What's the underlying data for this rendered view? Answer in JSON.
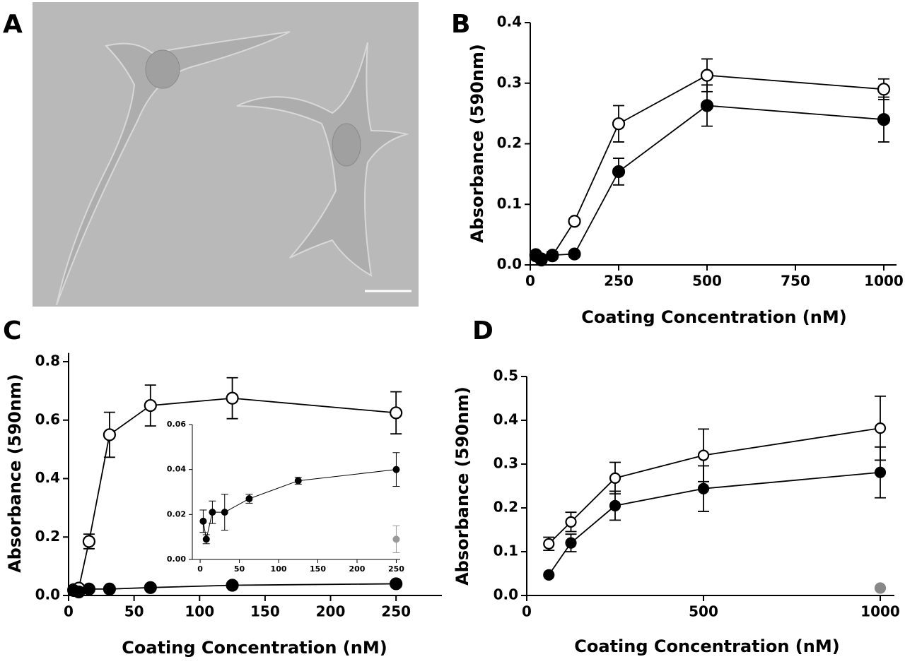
{
  "image_panel": {
    "label": "A"
  },
  "chart_data": [
    {
      "type": "line",
      "panel_label": "B",
      "ylabel": "Absorbance (590nm)",
      "xlabel": "Coating Concentration (nM)",
      "xlim": [
        0,
        1036
      ],
      "ylim": [
        0,
        0.4
      ],
      "xticks": [
        0,
        250,
        500,
        750,
        1000
      ],
      "yticks": [
        {
          "value": 0,
          "label": "0.0"
        },
        0.1,
        0.2,
        0.3,
        0.4
      ],
      "grid": false,
      "series": [
        {
          "color": "#000000",
          "fill": "#ffffff",
          "x": [
            15.6,
            31.25,
            62.5,
            125,
            250,
            500,
            1000
          ],
          "values": [
            0.015,
            0.01,
            0.015,
            0.072,
            0.233,
            0.313,
            0.29
          ],
          "errors": [
            null,
            null,
            null,
            null,
            0.03,
            0.027,
            0.017
          ]
        },
        {
          "color": "#000000",
          "fill": "#000000",
          "x": [
            15.6,
            31.25,
            62.5,
            125,
            250,
            500,
            1000
          ],
          "values": [
            0.017,
            0.008,
            0.016,
            0.018,
            0.154,
            0.263,
            0.24
          ],
          "errors": [
            null,
            null,
            0.006,
            null,
            0.022,
            0.034,
            0.037
          ]
        }
      ]
    },
    {
      "type": "line",
      "panel_label": "C",
      "ylabel": "Absorbance (590nm)",
      "xlabel": "Coating Concentration (nM)",
      "xlim": [
        0,
        285
      ],
      "ylim": [
        0,
        0.83
      ],
      "xticks": [
        0,
        50,
        100,
        150,
        200,
        250
      ],
      "yticks": [
        {
          "value": 0,
          "label": "0.0"
        },
        0.2,
        0.4,
        0.6,
        0.8
      ],
      "grid": false,
      "series": [
        {
          "color": "#000000",
          "fill": "#ffffff",
          "x": [
            3.9,
            7.8,
            15.6,
            31.25,
            62.5,
            125,
            250
          ],
          "values": [
            0.02,
            0.025,
            0.185,
            0.55,
            0.65,
            0.675,
            0.625
          ],
          "errors": [
            null,
            null,
            0.025,
            0.077,
            0.07,
            0.07,
            0.072
          ]
        },
        {
          "color": "#000000",
          "fill": "#000000",
          "x": [
            3.9,
            7.8,
            15.6,
            31.25,
            62.5,
            125,
            250
          ],
          "values": [
            0.017,
            0.012,
            0.022,
            0.022,
            0.027,
            0.035,
            0.04
          ],
          "errors": [
            null,
            null,
            null,
            null,
            null,
            null,
            null
          ]
        }
      ]
    },
    {
      "type": "line",
      "xlim": [
        -10,
        255
      ],
      "ylim": [
        0,
        0.06
      ],
      "xticks": [
        0,
        50,
        100,
        150,
        200,
        250
      ],
      "yticks": [
        {
          "value": 0,
          "label": "0.00"
        },
        {
          "value": 0.02,
          "label": "0.02"
        },
        {
          "value": 0.04,
          "label": "0.04"
        },
        {
          "value": 0.06,
          "label": "0.06"
        }
      ],
      "grid": false,
      "series": [
        {
          "color": "#000000",
          "fill": "#000000",
          "x": [
            3.9,
            7.8,
            15.6,
            31.25,
            62.5,
            125,
            250
          ],
          "values": [
            0.017,
            0.009,
            0.021,
            0.021,
            0.027,
            0.035,
            0.04
          ],
          "errors": [
            0.005,
            0.002,
            0.005,
            0.008,
            0.002,
            0.0015,
            0.0075
          ]
        },
        {
          "color": "#999999",
          "fill": "#999999",
          "x": [
            250
          ],
          "values": [
            0.009
          ],
          "errors": [
            0.006
          ]
        }
      ]
    },
    {
      "type": "line",
      "panel_label": "D",
      "ylabel": "Absorbance (590nm)",
      "xlabel": "Coating Concentration (nM)",
      "xlim": [
        0,
        1040
      ],
      "ylim": [
        0,
        0.5
      ],
      "xticks": [
        0,
        500,
        1000
      ],
      "yticks": [
        {
          "value": 0,
          "label": "0.0"
        },
        0.1,
        0.2,
        0.3,
        0.4,
        0.5
      ],
      "grid": false,
      "series": [
        {
          "color": "#000000",
          "fill": "#ffffff",
          "x": [
            62.5,
            125,
            250,
            500,
            1000
          ],
          "values": [
            0.118,
            0.168,
            0.268,
            0.32,
            0.382
          ],
          "errors": [
            0.015,
            0.022,
            0.036,
            0.06,
            0.073
          ]
        },
        {
          "color": "#000000",
          "fill": "#000000",
          "x": [
            62.5,
            125,
            250,
            500,
            1000
          ],
          "values": [
            0.047,
            0.12,
            0.205,
            0.244,
            0.281
          ],
          "errors": [
            null,
            0.02,
            0.033,
            0.052,
            0.058
          ]
        },
        {
          "color": "#888888",
          "fill": "#888888",
          "x": [
            1000
          ],
          "values": [
            0.017
          ],
          "errors": [
            null
          ]
        }
      ]
    }
  ]
}
